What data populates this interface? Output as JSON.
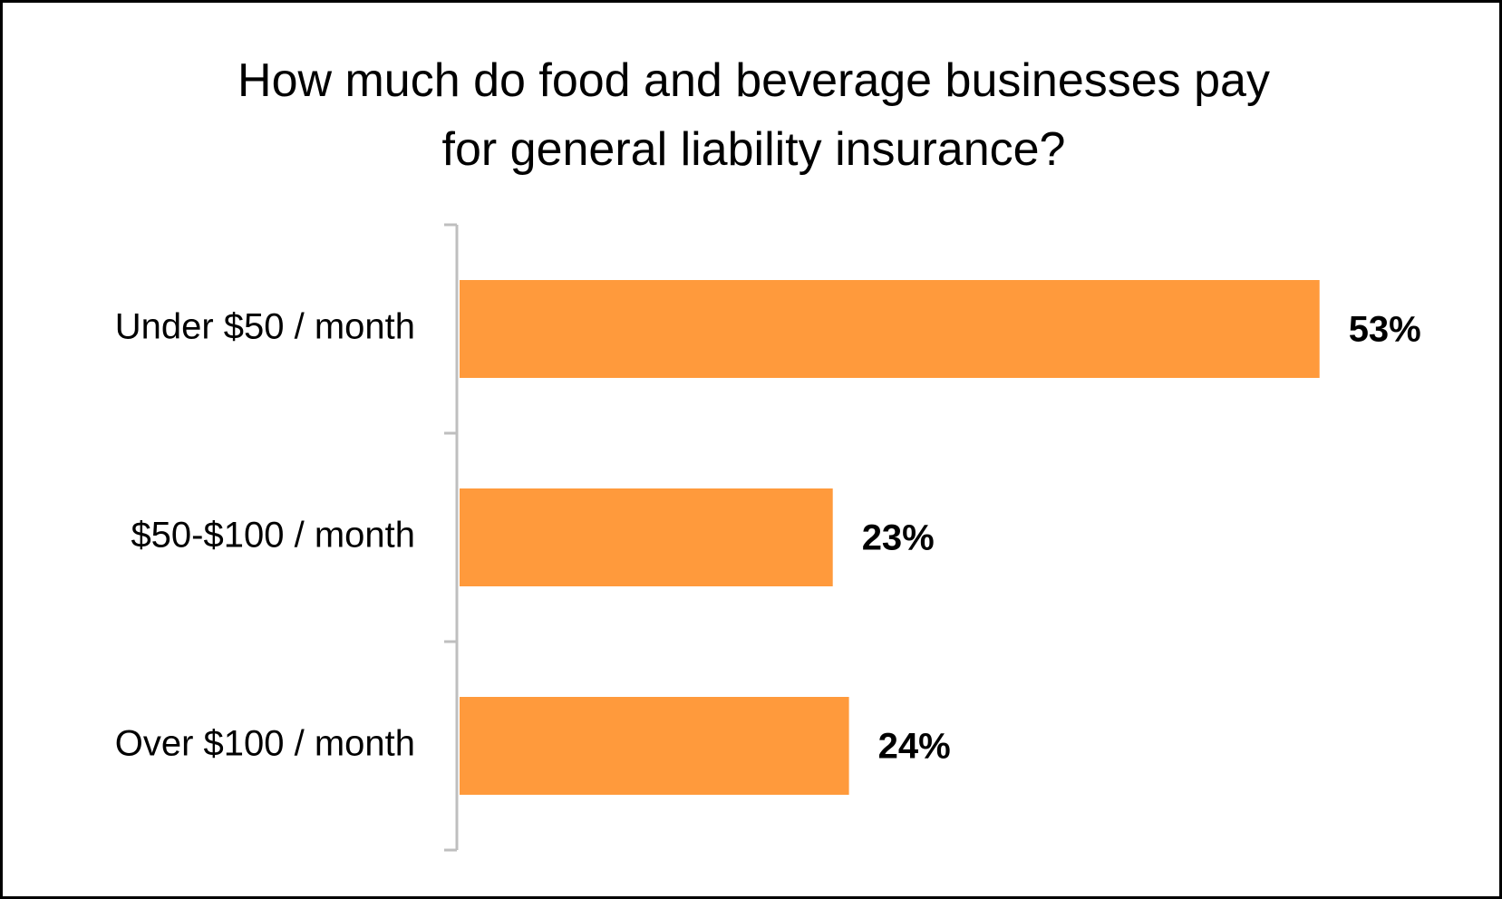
{
  "chart_data": {
    "type": "bar",
    "orientation": "horizontal",
    "title": "How much do food and beverage businesses pay for general liability insurance?",
    "title_lines": [
      "How much do food and beverage businesses pay",
      "for general liability insurance?"
    ],
    "categories": [
      "Under $50 / month",
      "$50-$100 / month",
      "Over $100 / month"
    ],
    "values": [
      53,
      23,
      24
    ],
    "value_labels": [
      "53%",
      "23%",
      "24%"
    ],
    "unit": "%",
    "xlim": [
      0,
      60
    ],
    "bar_color": "#FF9A3C",
    "axis_color": "#BFBFBF",
    "grid": false,
    "legend": "none"
  }
}
